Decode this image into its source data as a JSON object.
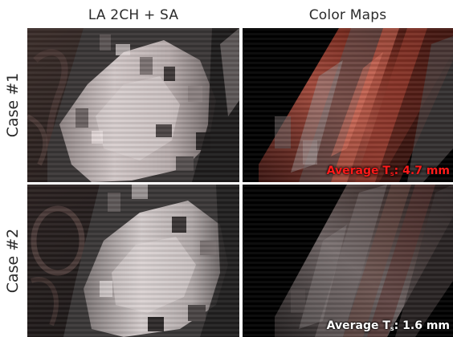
{
  "columns": {
    "left_title": "LA 2CH + SA",
    "right_title": "Color Maps"
  },
  "rows": [
    {
      "label": "Case #1",
      "avg_prefix": "Average T",
      "avg_sub": "s",
      "avg_suffix": ": 4.7 mm",
      "avg_color": "#ff1a1a"
    },
    {
      "label": "Case #2",
      "avg_prefix": "Average T",
      "avg_sub": "s",
      "avg_suffix": ": 1.6 mm",
      "avg_color": "#ffffff"
    }
  ]
}
